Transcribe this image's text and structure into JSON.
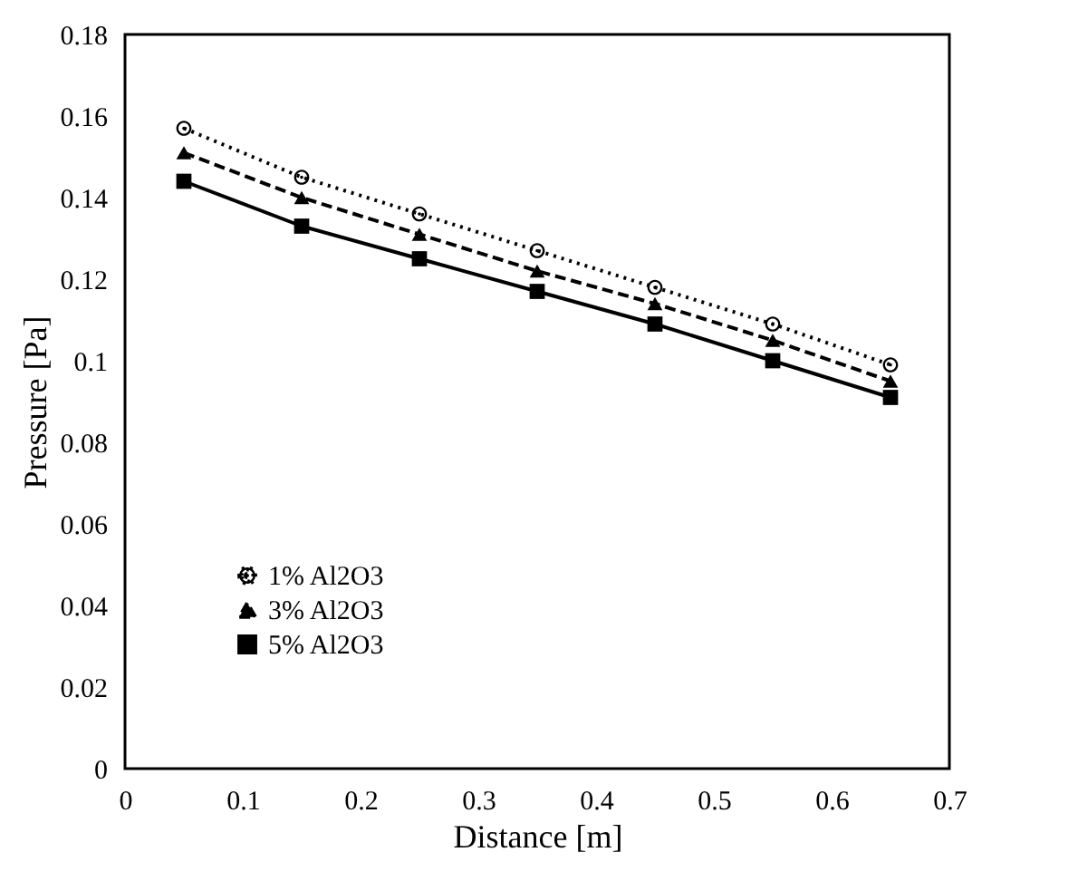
{
  "chart_data": {
    "type": "line",
    "xlabel": "Distance [m]",
    "ylabel": "Pressure [Pa]",
    "x": [
      0.05,
      0.15,
      0.25,
      0.35,
      0.45,
      0.55,
      0.65
    ],
    "series": [
      {
        "name": "1% Al2O3",
        "color": "#000000",
        "marker": "circle",
        "line_style": "dotted",
        "values": [
          0.157,
          0.145,
          0.136,
          0.127,
          0.118,
          0.109,
          0.099
        ]
      },
      {
        "name": "3% Al2O3",
        "color": "#000000",
        "marker": "triangle",
        "line_style": "dashed",
        "values": [
          0.151,
          0.14,
          0.131,
          0.122,
          0.114,
          0.105,
          0.095
        ]
      },
      {
        "name": "5% Al2O3",
        "color": "#000000",
        "marker": "square",
        "line_style": "solid",
        "values": [
          0.144,
          0.133,
          0.125,
          0.117,
          0.109,
          0.1,
          0.091
        ]
      }
    ],
    "xlim": [
      0,
      0.7
    ],
    "xticks": [
      0,
      0.1,
      0.2,
      0.3,
      0.4,
      0.5,
      0.6,
      0.7
    ],
    "ylim": [
      0,
      0.18
    ],
    "yticks": [
      0,
      0.02,
      0.04,
      0.06,
      0.08,
      0.1,
      0.12,
      0.14,
      0.16,
      0.18
    ],
    "grid": false,
    "legend": "bottom left"
  }
}
